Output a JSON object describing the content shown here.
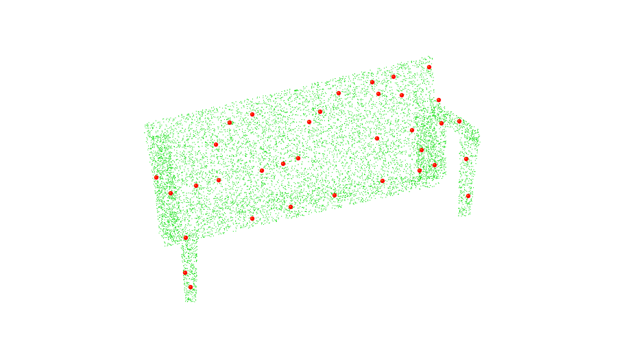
{
  "scene": {
    "subject": "bench-point-cloud",
    "point_cloud_color": "#00dd00",
    "keypoint_color": "#ff0000",
    "keypoint_highlight_color": "#f5a623",
    "background_color": "#ffffff"
  }
}
